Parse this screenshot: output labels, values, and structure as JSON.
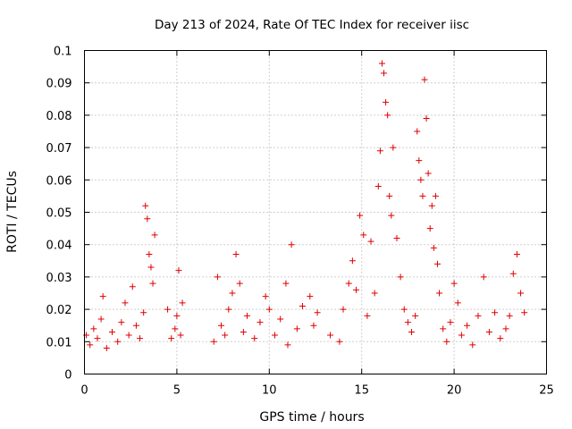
{
  "chart_data": {
    "type": "scatter",
    "title": "Day 213 of 2024, Rate Of TEC Index for receiver iisc",
    "xlabel": "GPS time / hours",
    "ylabel": "ROTI / TECUs",
    "xlim": [
      0,
      25
    ],
    "ylim": [
      0,
      0.1
    ],
    "xticks": [
      "0",
      "5",
      "10",
      "15",
      "20",
      "25"
    ],
    "yticks": [
      "0",
      "0.01",
      "0.02",
      "0.03",
      "0.04",
      "0.05",
      "0.06",
      "0.07",
      "0.08",
      "0.09",
      "0.1"
    ],
    "grid": true,
    "marker": "+",
    "color": "#e00000",
    "series": [
      {
        "x": [
          0.1,
          0.3,
          0.5,
          0.7,
          0.9,
          1.0,
          1.2,
          1.5,
          1.8,
          2.0,
          2.2,
          2.4,
          2.6,
          2.8,
          3.0,
          3.2,
          3.3,
          3.4,
          3.5,
          3.6,
          3.7,
          3.8,
          4.5,
          4.7,
          4.9,
          5.0,
          5.1,
          5.2,
          5.3,
          7.0,
          7.2,
          7.4,
          7.6,
          7.8,
          8.0,
          8.2,
          8.4,
          8.6,
          8.8,
          9.2,
          9.5,
          9.8,
          10.0,
          10.3,
          10.6,
          10.9,
          11.0,
          11.2,
          11.5,
          11.8,
          12.2,
          12.4,
          12.6,
          13.3,
          13.8,
          14.0,
          14.3,
          14.5,
          14.7,
          14.9,
          15.1,
          15.3,
          15.5,
          15.7,
          15.9,
          16.0,
          16.1,
          16.2,
          16.3,
          16.4,
          16.5,
          16.6,
          16.7,
          16.9,
          17.1,
          17.3,
          17.5,
          17.7,
          17.9,
          18.0,
          18.1,
          18.2,
          18.3,
          18.4,
          18.5,
          18.6,
          18.7,
          18.8,
          18.9,
          19.0,
          19.1,
          19.2,
          19.4,
          19.6,
          19.8,
          20.0,
          20.2,
          20.4,
          20.7,
          21.0,
          21.3,
          21.6,
          21.9,
          22.2,
          22.5,
          22.8,
          23.0,
          23.2,
          23.4,
          23.6,
          23.8
        ],
        "y": [
          0.012,
          0.009,
          0.014,
          0.011,
          0.017,
          0.024,
          0.008,
          0.013,
          0.01,
          0.016,
          0.022,
          0.012,
          0.027,
          0.015,
          0.011,
          0.019,
          0.052,
          0.048,
          0.037,
          0.033,
          0.028,
          0.043,
          0.02,
          0.011,
          0.014,
          0.018,
          0.032,
          0.012,
          0.022,
          0.01,
          0.03,
          0.015,
          0.012,
          0.02,
          0.025,
          0.037,
          0.028,
          0.013,
          0.018,
          0.011,
          0.016,
          0.024,
          0.02,
          0.012,
          0.017,
          0.028,
          0.009,
          0.04,
          0.014,
          0.021,
          0.024,
          0.015,
          0.019,
          0.012,
          0.01,
          0.02,
          0.028,
          0.035,
          0.026,
          0.049,
          0.043,
          0.018,
          0.041,
          0.025,
          0.058,
          0.069,
          0.096,
          0.093,
          0.084,
          0.08,
          0.055,
          0.049,
          0.07,
          0.042,
          0.03,
          0.02,
          0.016,
          0.013,
          0.018,
          0.075,
          0.066,
          0.06,
          0.055,
          0.091,
          0.079,
          0.062,
          0.045,
          0.052,
          0.039,
          0.055,
          0.034,
          0.025,
          0.014,
          0.01,
          0.016,
          0.028,
          0.022,
          0.012,
          0.015,
          0.009,
          0.018,
          0.03,
          0.013,
          0.019,
          0.011,
          0.014,
          0.018,
          0.031,
          0.037,
          0.025,
          0.019
        ]
      }
    ]
  }
}
